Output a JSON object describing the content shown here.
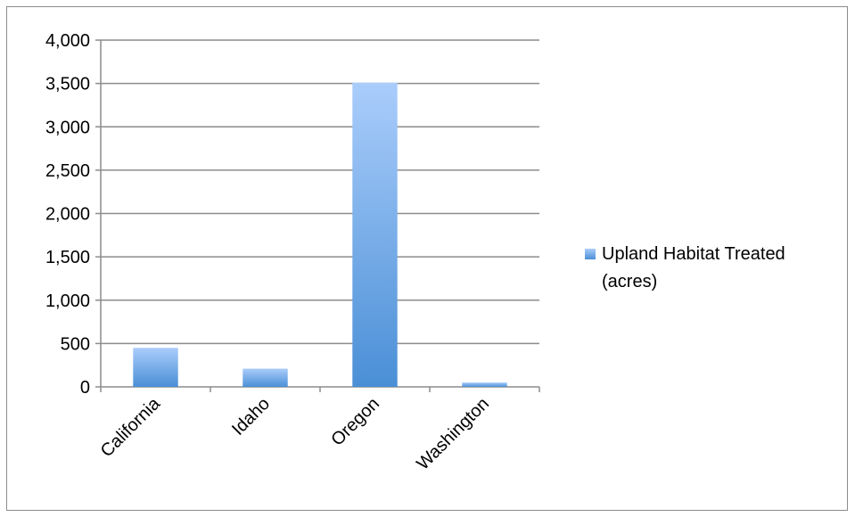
{
  "chart_data": {
    "type": "bar",
    "title": "",
    "xlabel": "",
    "ylabel": "",
    "categories": [
      "California",
      "Idaho",
      "Oregon",
      "Washington"
    ],
    "series": [
      {
        "name": "Upland Habitat Treated (acres)",
        "values": [
          450,
          210,
          3510,
          50
        ]
      }
    ],
    "ylim": [
      0,
      4000
    ],
    "yticks": [
      0,
      500,
      1000,
      1500,
      2000,
      2500,
      3000,
      3500,
      4000
    ],
    "ytick_labels": [
      "0",
      "500",
      "1,000",
      "1,500",
      "2,000",
      "2,500",
      "3,000",
      "3,500",
      "4,000"
    ],
    "grid": true,
    "legend_position": "right",
    "colors": {
      "bar_top": "#aacdfb",
      "bar_bottom": "#4a8fd6",
      "grid": "#8c8c8c"
    }
  },
  "legend": {
    "line1": "Upland Habitat Treated",
    "line2": "(acres)"
  }
}
